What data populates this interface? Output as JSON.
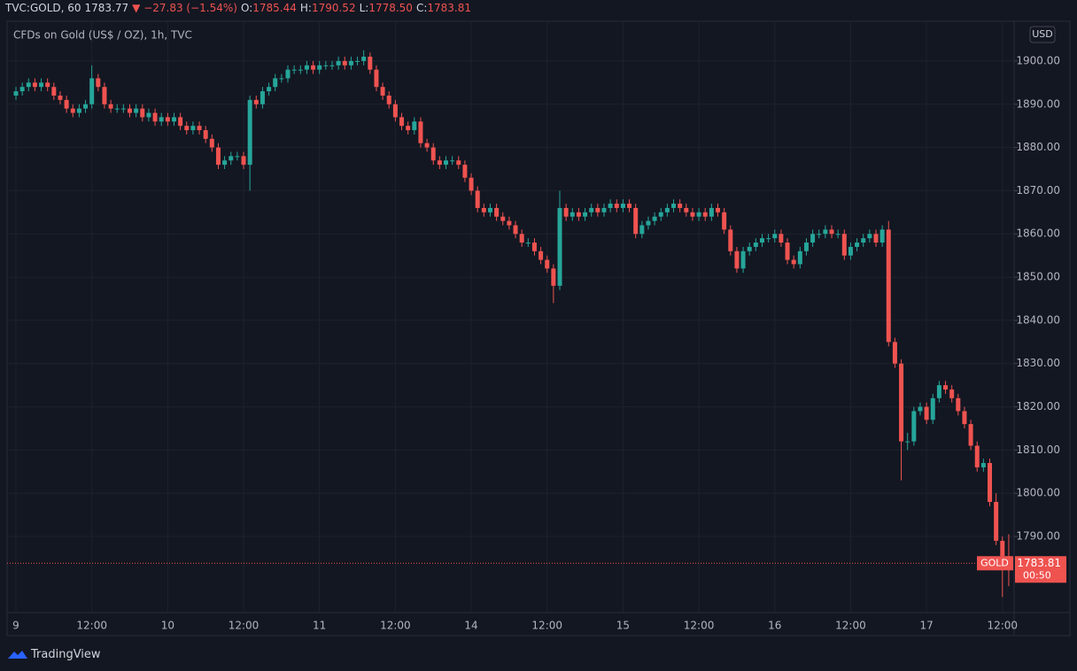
{
  "header": {
    "symbol": "TVC:GOLD, 60",
    "last": "1783.77",
    "change": "▼ −27.83 (−1.54%)",
    "o_label": "O:",
    "o": "1785.44",
    "h_label": "H:",
    "h": "1790.52",
    "l_label": "L:",
    "l": "1778.50",
    "c_label": "C:",
    "c": "1783.81"
  },
  "footer": {
    "brand": "TradingView"
  },
  "chart_data": {
    "type": "candlestick",
    "title": "CFDs on Gold (US$ / OZ), 1h, TVC",
    "currency": "USD",
    "price_label": {
      "symbol": "GOLD",
      "price": "1783.81",
      "countdown": "00:50"
    },
    "up_color": "#26a69a",
    "down_color": "#ef5350",
    "grid": true,
    "ylim": [
      1772.4,
      1909.2
    ],
    "yticks": [
      {
        "value": 1790,
        "label": "1790.00"
      },
      {
        "value": 1800,
        "label": "1800.00"
      },
      {
        "value": 1810,
        "label": "1810.00"
      },
      {
        "value": 1820,
        "label": "1820.00"
      },
      {
        "value": 1830,
        "label": "1830.00"
      },
      {
        "value": 1840,
        "label": "1840.00"
      },
      {
        "value": 1850,
        "label": "1850.00"
      },
      {
        "value": 1860,
        "label": "1860.00"
      },
      {
        "value": 1870,
        "label": "1870.00"
      },
      {
        "value": 1880,
        "label": "1880.00"
      },
      {
        "value": 1890,
        "label": "1890.00"
      },
      {
        "value": 1900,
        "label": "1900.00"
      }
    ],
    "xlim": [
      -1.4,
      157.85
    ],
    "xticks": [
      {
        "value": 0,
        "label": "9"
      },
      {
        "value": 12,
        "label": "12:00"
      },
      {
        "value": 24,
        "label": "10"
      },
      {
        "value": 36,
        "label": "12:00"
      },
      {
        "value": 48,
        "label": "11"
      },
      {
        "value": 60,
        "label": "12:00"
      },
      {
        "value": 72,
        "label": "14"
      },
      {
        "value": 84,
        "label": "12:00"
      },
      {
        "value": 96,
        "label": "15"
      },
      {
        "value": 108,
        "label": "12:00"
      },
      {
        "value": 120,
        "label": "16"
      },
      {
        "value": 132,
        "label": "12:00"
      },
      {
        "value": 144,
        "label": "17"
      },
      {
        "value": 156,
        "label": "12:00"
      }
    ],
    "open": [
      1892,
      1893,
      1894,
      1895,
      1894,
      1895,
      1894,
      1892,
      1891,
      1889,
      1888,
      1889,
      1890,
      1896,
      1894,
      1890,
      1889,
      1889,
      1889,
      1888,
      1889,
      1887,
      1888,
      1886,
      1887,
      1886,
      1887,
      1885,
      1884,
      1885,
      1884,
      1882,
      1880,
      1876,
      1877,
      1878,
      1878,
      1876,
      1891,
      1890,
      1893,
      1894,
      1896,
      1896,
      1898,
      1898,
      1898,
      1899,
      1898,
      1899,
      1899,
      1899,
      1900,
      1899,
      1900,
      1900,
      1901,
      1898,
      1894,
      1892,
      1890,
      1887,
      1885,
      1884,
      1886,
      1881,
      1880,
      1877,
      1876,
      1877,
      1877,
      1876,
      1873,
      1870,
      1866,
      1865,
      1866,
      1864,
      1863,
      1862,
      1860,
      1858,
      1858,
      1856,
      1854,
      1852,
      1848,
      1866,
      1864,
      1865,
      1864,
      1865,
      1866,
      1865,
      1866,
      1867,
      1866,
      1867,
      1866,
      1860,
      1862,
      1863,
      1864,
      1865,
      1866,
      1867,
      1866,
      1865,
      1864,
      1865,
      1864,
      1866,
      1865,
      1861,
      1856,
      1852,
      1856,
      1857,
      1858,
      1859,
      1859,
      1860,
      1858,
      1854,
      1853,
      1856,
      1858,
      1860,
      1860,
      1861,
      1860,
      1860,
      1855,
      1857,
      1858,
      1859,
      1860,
      1858,
      1861,
      1835,
      1830,
      1812,
      1812,
      1819,
      1820,
      1817,
      1822,
      1825,
      1824,
      1822,
      1819,
      1816,
      1811,
      1806,
      1807,
      1798,
      1789,
      1785.44
    ],
    "high": [
      1894,
      1895,
      1896,
      1896,
      1896,
      1896,
      1895,
      1893,
      1892,
      1890,
      1890,
      1891,
      1899,
      1897,
      1895,
      1891,
      1890,
      1890,
      1890,
      1890,
      1890,
      1889,
      1889,
      1888,
      1888,
      1888,
      1888,
      1886,
      1886,
      1886,
      1885,
      1883,
      1881,
      1878,
      1879,
      1879,
      1879,
      1892,
      1892,
      1894,
      1895,
      1897,
      1897,
      1899,
      1899,
      1899,
      1900,
      1900,
      1900,
      1900,
      1900,
      1901,
      1901,
      1901,
      1901,
      1902.5,
      1902,
      1899,
      1895,
      1893,
      1891,
      1888,
      1886,
      1887,
      1887,
      1882,
      1881,
      1878,
      1878,
      1878,
      1878,
      1877,
      1874,
      1871,
      1867,
      1867,
      1867,
      1865,
      1864,
      1863,
      1861,
      1859,
      1859,
      1857,
      1855,
      1853,
      1870,
      1867,
      1866,
      1866,
      1866,
      1867,
      1867,
      1867,
      1868,
      1868,
      1868,
      1868,
      1867,
      1863,
      1864,
      1865,
      1866,
      1867,
      1868,
      1868,
      1867,
      1866,
      1866,
      1866,
      1867,
      1867,
      1866,
      1862,
      1857,
      1857,
      1858,
      1859,
      1860,
      1860,
      1861,
      1861,
      1859,
      1855,
      1857,
      1859,
      1861,
      1861,
      1862,
      1862,
      1861,
      1861,
      1858,
      1859,
      1860,
      1861,
      1861,
      1862,
      1863,
      1836,
      1831,
      1814,
      1820,
      1821,
      1821,
      1823,
      1826,
      1826,
      1825,
      1823,
      1820,
      1817,
      1812,
      1808,
      1808,
      1800,
      1790,
      1790.52
    ],
    "low": [
      1891,
      1892,
      1893,
      1893,
      1893,
      1893,
      1891,
      1890,
      1888,
      1887,
      1887,
      1888,
      1889,
      1893,
      1889,
      1888,
      1888,
      1888,
      1887,
      1887,
      1886,
      1886,
      1885,
      1885,
      1885,
      1885,
      1884,
      1883,
      1883,
      1883,
      1881,
      1879,
      1875,
      1875,
      1876,
      1877,
      1875,
      1870,
      1889,
      1889,
      1892,
      1893,
      1895,
      1895,
      1897,
      1897,
      1897,
      1897,
      1897,
      1898,
      1898,
      1898,
      1898,
      1898,
      1899,
      1899,
      1897,
      1893,
      1891,
      1889,
      1886,
      1884,
      1883,
      1883,
      1880,
      1879,
      1876,
      1875,
      1875,
      1876,
      1875,
      1872,
      1869,
      1865,
      1864,
      1864,
      1863,
      1862,
      1861,
      1859,
      1857,
      1857,
      1855,
      1853,
      1851,
      1844,
      1847,
      1863,
      1863,
      1863,
      1863,
      1864,
      1864,
      1864,
      1865,
      1865,
      1865,
      1865,
      1859,
      1859,
      1861,
      1862,
      1863,
      1864,
      1865,
      1865,
      1864,
      1863,
      1863,
      1863,
      1863,
      1864,
      1860,
      1855,
      1851,
      1851,
      1855,
      1856,
      1857,
      1858,
      1858,
      1857,
      1853,
      1852,
      1852,
      1855,
      1857,
      1859,
      1859,
      1859,
      1859,
      1854,
      1854,
      1856,
      1857,
      1858,
      1857,
      1857,
      1834,
      1829,
      1803,
      1810,
      1811,
      1818,
      1816,
      1816,
      1821,
      1823,
      1821,
      1818,
      1815,
      1810,
      1805,
      1805,
      1797,
      1788,
      1776,
      1778.5
    ],
    "close": [
      1893,
      1894,
      1895,
      1894,
      1895,
      1894,
      1892,
      1891,
      1889,
      1888,
      1889,
      1890,
      1896,
      1894,
      1890,
      1889,
      1889,
      1889,
      1888,
      1889,
      1887,
      1888,
      1886,
      1887,
      1886,
      1887,
      1885,
      1884,
      1885,
      1884,
      1882,
      1880,
      1876,
      1877,
      1878,
      1878,
      1876,
      1891,
      1890,
      1893,
      1894,
      1896,
      1896,
      1898,
      1898,
      1898,
      1899,
      1898,
      1899,
      1899,
      1899,
      1900,
      1899,
      1900,
      1900,
      1901,
      1898,
      1894,
      1892,
      1890,
      1887,
      1885,
      1884,
      1886,
      1881,
      1880,
      1877,
      1876,
      1877,
      1877,
      1876,
      1873,
      1870,
      1866,
      1865,
      1866,
      1864,
      1863,
      1862,
      1860,
      1858,
      1858,
      1856,
      1854,
      1852,
      1848,
      1866,
      1864,
      1865,
      1864,
      1865,
      1866,
      1865,
      1866,
      1867,
      1866,
      1867,
      1866,
      1860,
      1862,
      1863,
      1864,
      1865,
      1866,
      1867,
      1866,
      1865,
      1864,
      1865,
      1864,
      1866,
      1865,
      1861,
      1856,
      1852,
      1856,
      1857,
      1858,
      1859,
      1859,
      1860,
      1858,
      1854,
      1853,
      1856,
      1858,
      1860,
      1860,
      1861,
      1860,
      1860,
      1855,
      1857,
      1858,
      1859,
      1860,
      1858,
      1861,
      1835,
      1830,
      1812,
      1812,
      1819,
      1820,
      1817,
      1822,
      1825,
      1824,
      1822,
      1819,
      1816,
      1811,
      1806,
      1807,
      1798,
      1789,
      1785.44,
      1783.81
    ]
  }
}
